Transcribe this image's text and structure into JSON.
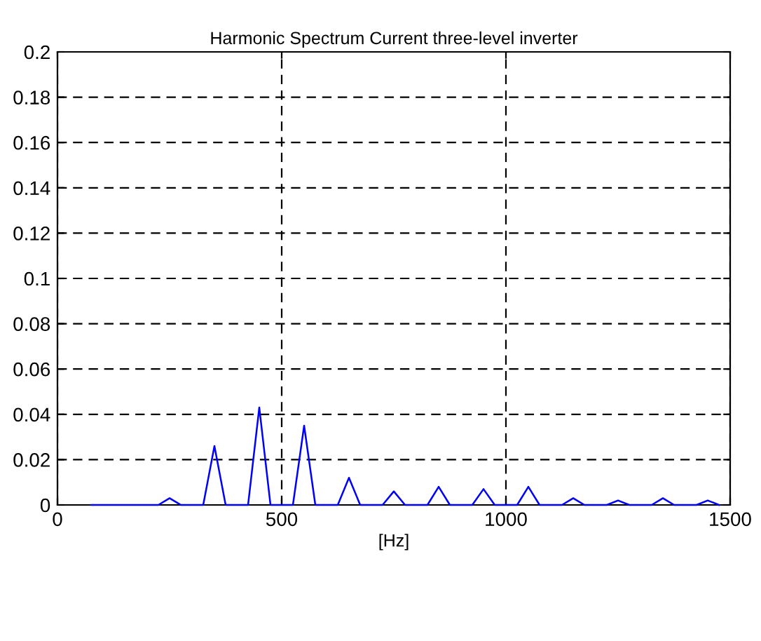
{
  "chart_data": {
    "type": "line",
    "title": "Harmonic Spectrum Current three-level inverter",
    "xlabel": "[Hz]",
    "x": [
      75,
      100,
      125,
      150,
      175,
      200,
      225,
      250,
      275,
      300,
      325,
      350,
      375,
      400,
      425,
      450,
      475,
      500,
      525,
      550,
      575,
      600,
      625,
      650,
      675,
      700,
      725,
      750,
      775,
      800,
      825,
      850,
      875,
      900,
      925,
      950,
      975,
      1000,
      1025,
      1050,
      1075,
      1100,
      1125,
      1150,
      1175,
      1200,
      1225,
      1250,
      1275,
      1300,
      1325,
      1350,
      1375,
      1400,
      1425,
      1450,
      1475
    ],
    "series": [
      {
        "color": "#0000ff",
        "values": [
          0,
          0,
          0,
          0,
          0,
          0,
          0,
          0.003,
          0,
          0,
          0,
          0.026,
          0,
          0,
          0,
          0.043,
          0,
          0,
          0,
          0.035,
          0,
          0,
          0,
          0.012,
          0,
          0,
          0,
          0.006,
          0,
          0,
          0,
          0.008,
          0,
          0,
          0,
          0.007,
          0,
          0,
          0,
          0.008,
          0,
          0,
          0,
          0.003,
          0,
          0,
          0,
          0.002,
          0,
          0,
          0,
          0.003,
          0,
          0,
          0,
          0.002,
          0
        ]
      }
    ],
    "xlim": [
      0,
      1500
    ],
    "xticks": [
      0,
      500,
      1000,
      1500
    ],
    "ylim": [
      0,
      0.2
    ],
    "yticks": [
      0,
      0.02,
      0.04,
      0.06,
      0.08,
      0.1,
      0.12,
      0.14,
      0.16,
      0.18,
      0.2
    ],
    "grid": true
  }
}
